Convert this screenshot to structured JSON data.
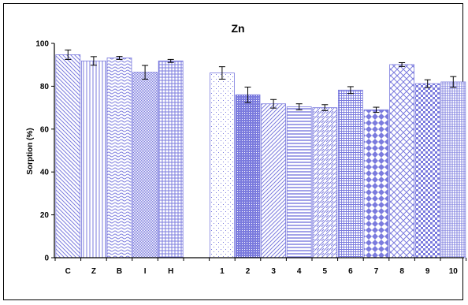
{
  "chart_data": {
    "type": "bar",
    "title": "Zn",
    "ylabel": "Sorption (%)",
    "xlabel": "",
    "ylim": [
      0,
      100
    ],
    "yticks": [
      0,
      20,
      40,
      60,
      80,
      100
    ],
    "grid": false,
    "legend": "none",
    "bar_color": "#7b7bde",
    "categories": [
      "C",
      "Z",
      "B",
      "I",
      "H",
      "1",
      "2",
      "3",
      "4",
      "5",
      "6",
      "7",
      "8",
      "9",
      "10"
    ],
    "values": [
      94.7,
      91.8,
      93.2,
      86.5,
      91.8,
      86.2,
      76.0,
      71.8,
      70.4,
      70.0,
      78.2,
      69.0,
      90.1,
      81.2,
      82.0
    ],
    "errors": [
      2.2,
      2.0,
      0.7,
      3.2,
      0.7,
      2.9,
      3.6,
      2.0,
      1.4,
      1.4,
      1.6,
      1.2,
      0.9,
      1.8,
      2.5
    ],
    "patterns": [
      "diag-left",
      "vertical",
      "wavy",
      "dense-dots",
      "grid",
      "sparse-dots",
      "solid-dots",
      "diag-right",
      "horizontal",
      "dashed-diag",
      "fine-grid",
      "diamond",
      "hollow-diamond",
      "checker",
      "fine-vertical"
    ]
  }
}
